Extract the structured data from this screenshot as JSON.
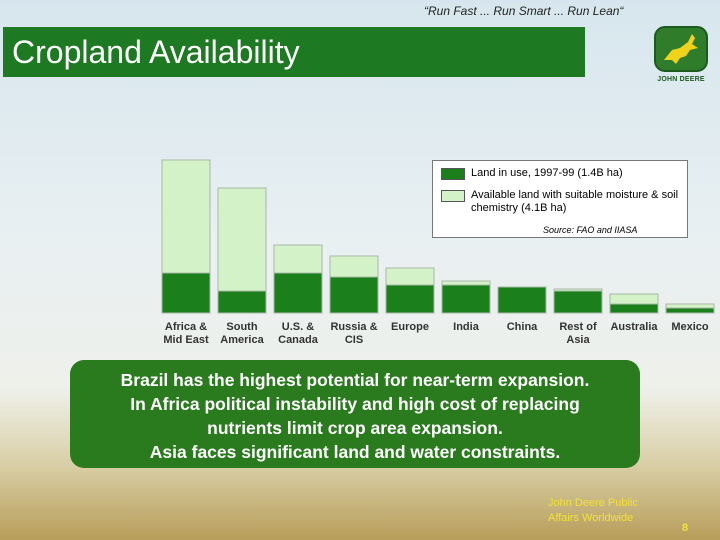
{
  "slogan": "“Run Fast ... Run Smart ... Run Lean“",
  "logo_text": "JOHN DEERE",
  "chart_data": {
    "type": "stacked_bar",
    "title": "Cropland Availability",
    "categories": [
      "Africa & Mid East",
      "South America",
      "U.S. & Canada",
      "Russia & CIS",
      "Europe",
      "India",
      "China",
      "Rest of Asia",
      "Australia",
      "Mexico"
    ],
    "series": [
      {
        "name": "Land in use, 1997-99 (1.4B ha)",
        "color": "#1b7f1b",
        "values": [
          200,
          110,
          200,
          180,
          140,
          140,
          130,
          110,
          45,
          25
        ]
      },
      {
        "name": "Available land with suitable moisture & soil chemistry (4.1B ha)",
        "color": "#d3f2c8",
        "values": [
          565,
          515,
          140,
          105,
          85,
          20,
          0,
          10,
          50,
          20
        ]
      }
    ],
    "ylim": [
      0,
      800
    ],
    "source": "Source: FAO and IIASA"
  },
  "callout": [
    "Brazil has the highest potential for near-term expansion.",
    "In Africa political instability and high cost of replacing nutrients limit crop area expansion.",
    "Asia faces significant land and water constraints."
  ],
  "footer": {
    "credit": "John Deere Public Affairs Worldwide",
    "page": "8"
  }
}
